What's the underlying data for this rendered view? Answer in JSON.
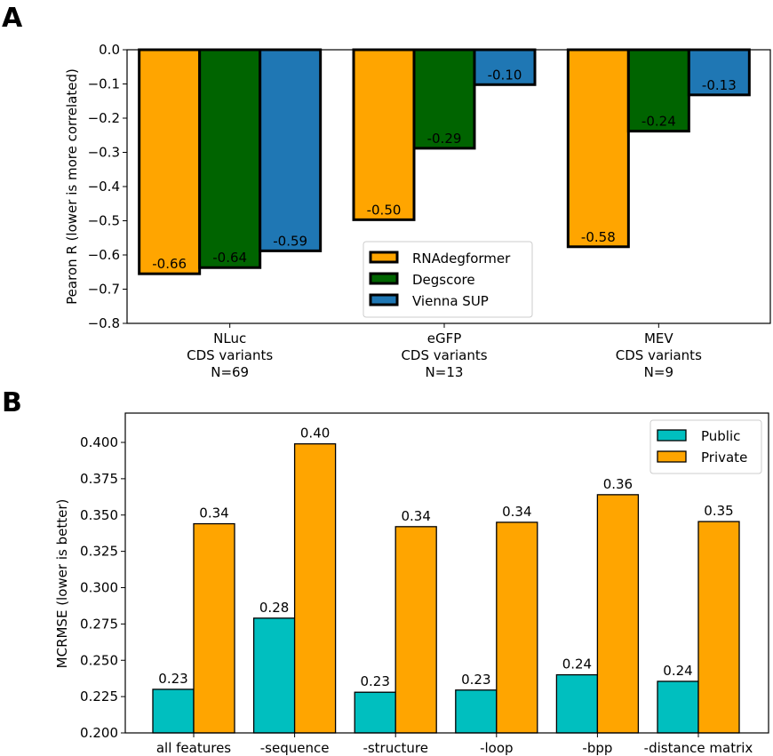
{
  "chart_data": [
    {
      "panel": "A",
      "type": "bar",
      "title": "",
      "xlabel": "",
      "ylabel": "Pearon R (lower is more correlated)",
      "ylim": [
        -0.8,
        0.0
      ],
      "yticks": [
        "0.0",
        "−0.1",
        "−0.2",
        "−0.3",
        "−0.4",
        "−0.5",
        "−0.6",
        "−0.7",
        "−0.8"
      ],
      "ytick_values": [
        0.0,
        -0.1,
        -0.2,
        -0.3,
        -0.4,
        -0.5,
        -0.6,
        -0.7,
        -0.8
      ],
      "categories": [
        [
          "NLuc",
          "CDS variants",
          "N=69"
        ],
        [
          "eGFP",
          "CDS variants",
          "N=13"
        ],
        [
          "MEV",
          "CDS variants",
          "N=9"
        ]
      ],
      "series": [
        {
          "name": "RNAdegformer",
          "color": "#FFA500",
          "values": [
            -0.655,
            -0.497,
            -0.576
          ],
          "labels": [
            "-0.66",
            "-0.50",
            "-0.58"
          ]
        },
        {
          "name": "Degscore",
          "color": "#006400",
          "values": [
            -0.637,
            -0.288,
            -0.238
          ],
          "labels": [
            "-0.64",
            "-0.29",
            "-0.24"
          ]
        },
        {
          "name": "Vienna SUP",
          "color": "#1F77B4",
          "values": [
            -0.588,
            -0.102,
            -0.132
          ],
          "labels": [
            "-0.59",
            "-0.10",
            "-0.13"
          ]
        }
      ],
      "legend": {
        "placement": "lower-center",
        "entries": [
          "RNAdegformer",
          "Degscore",
          "Vienna SUP"
        ]
      },
      "grid": false
    },
    {
      "panel": "B",
      "type": "bar",
      "title": "",
      "xlabel": "",
      "ylabel": "MCRMSE (lower is better)",
      "ylim": [
        0.2,
        0.418
      ],
      "yticks": [
        "0.200",
        "0.225",
        "0.250",
        "0.275",
        "0.300",
        "0.325",
        "0.350",
        "0.375",
        "0.400"
      ],
      "ytick_values": [
        0.2,
        0.225,
        0.25,
        0.275,
        0.3,
        0.325,
        0.35,
        0.375,
        0.4
      ],
      "categories": [
        "all features",
        "-sequence",
        "-structure",
        "-loop",
        "-bpp",
        "-distance matrix"
      ],
      "series": [
        {
          "name": "Public",
          "color": "#00BFBF",
          "values": [
            0.23,
            0.279,
            0.228,
            0.2295,
            0.24,
            0.2355
          ],
          "labels": [
            "0.23",
            "0.28",
            "0.23",
            "0.23",
            "0.24",
            "0.24"
          ]
        },
        {
          "name": "Private",
          "color": "#FFA500",
          "values": [
            0.344,
            0.399,
            0.342,
            0.345,
            0.364,
            0.3455
          ],
          "labels": [
            "0.34",
            "0.40",
            "0.34",
            "0.34",
            "0.36",
            "0.35"
          ]
        }
      ],
      "legend": {
        "placement": "top-right",
        "entries": [
          "Public",
          "Private"
        ]
      },
      "grid": false
    }
  ],
  "panels": {
    "a_letter": "A",
    "b_letter": "B"
  }
}
